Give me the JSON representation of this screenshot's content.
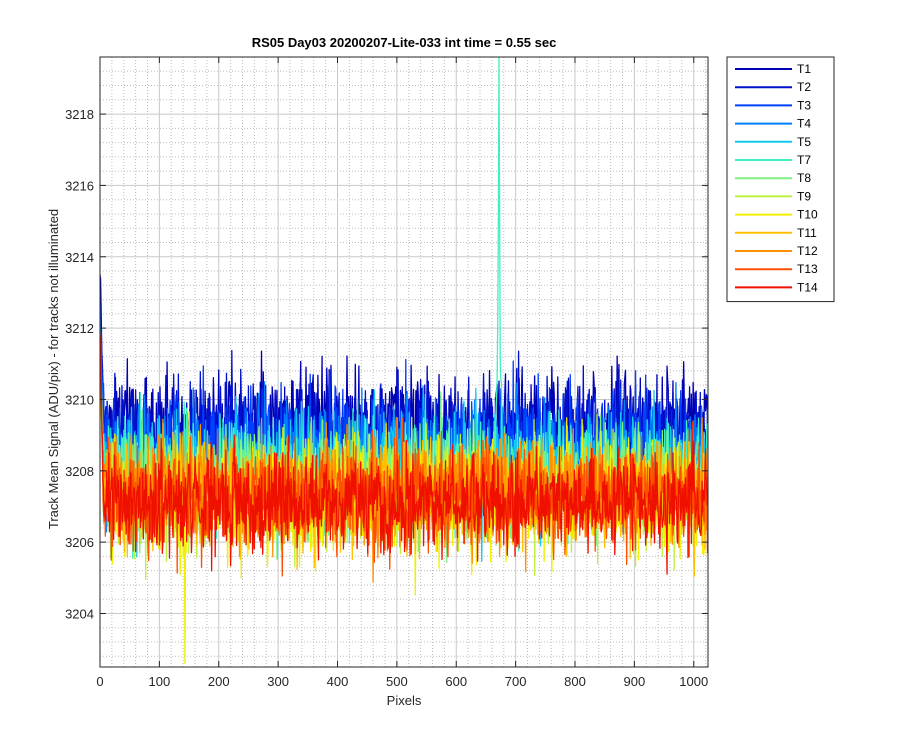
{
  "chart_data": {
    "type": "line",
    "title": "RS05 Day03 20200207-Lite-033 int time = 0.55 sec",
    "xlabel": "Pixels",
    "ylabel": "Track Mean Signal (ADU/pix) - for tracks not illuminated",
    "xlim": [
      0,
      1024
    ],
    "ylim": [
      3202.5,
      3219.6
    ],
    "xticks": [
      0,
      100,
      200,
      300,
      400,
      500,
      600,
      700,
      800,
      900,
      1000
    ],
    "yticks": [
      3204,
      3206,
      3208,
      3210,
      3212,
      3214,
      3216,
      3218
    ],
    "grid": true,
    "minor_grid": true,
    "legend_location": "outside-top-right",
    "n_points": 1024,
    "series": [
      {
        "name": "T1",
        "color": "#0000B4",
        "mean": 3209.3,
        "noise_sd": 0.75,
        "start": 3213.5
      },
      {
        "name": "T2",
        "color": "#0010CC",
        "mean": 3209.0,
        "noise_sd": 0.75,
        "start": 3213.0
      },
      {
        "name": "T3",
        "color": "#0040FF",
        "mean": 3208.7,
        "noise_sd": 0.75,
        "start": 3212.7
      },
      {
        "name": "T4",
        "color": "#0080FF",
        "mean": 3208.3,
        "noise_sd": 0.75,
        "start": 3212.2
      },
      {
        "name": "T5",
        "color": "#10C8F0",
        "mean": 3208.1,
        "noise_sd": 0.75,
        "start": 3212.0
      },
      {
        "name": "T7",
        "color": "#40F0C0",
        "mean": 3208.0,
        "noise_sd": 0.75,
        "start": 3211.8,
        "peak": {
          "x": 672,
          "y": 3219.6
        }
      },
      {
        "name": "T8",
        "color": "#80F080",
        "mean": 3207.6,
        "noise_sd": 0.75,
        "start": 3211.6
      },
      {
        "name": "T9",
        "color": "#C0F040",
        "mean": 3207.4,
        "noise_sd": 0.75,
        "start": 3211.5
      },
      {
        "name": "T10",
        "color": "#F0F000",
        "mean": 3207.3,
        "noise_sd": 0.75,
        "start": 3211.4,
        "min_point": {
          "x": 143,
          "y": 3202.6
        }
      },
      {
        "name": "T11",
        "color": "#FFC000",
        "mean": 3207.3,
        "noise_sd": 0.7,
        "start": 3211.3
      },
      {
        "name": "T12",
        "color": "#FF9000",
        "mean": 3207.4,
        "noise_sd": 0.7,
        "start": 3211.3
      },
      {
        "name": "T13",
        "color": "#FF5000",
        "mean": 3207.2,
        "noise_sd": 0.7,
        "start": 3211.2
      },
      {
        "name": "T14",
        "color": "#F01000",
        "mean": 3207.1,
        "noise_sd": 0.7,
        "start": 3211.9
      }
    ]
  }
}
